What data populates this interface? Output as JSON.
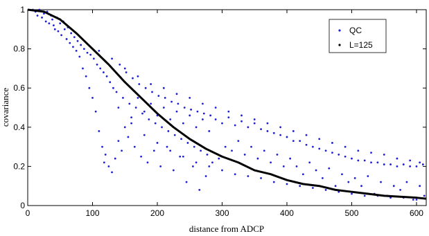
{
  "chart_data": {
    "type": "scatter",
    "xlabel": "distance from ADCP",
    "ylabel": "covariance",
    "xlim": [
      0,
      615
    ],
    "ylim": [
      0,
      1
    ],
    "xticks": [
      0,
      100,
      200,
      300,
      400,
      500,
      600
    ],
    "yticks": [
      0,
      0.2,
      0.4,
      0.6,
      0.8,
      1
    ],
    "grid": false,
    "legend_position": "top-right",
    "series": [
      {
        "name": "QC",
        "kind": "scatter",
        "color": "#1f1fd6",
        "points": [
          [
            8,
            1.0
          ],
          [
            12,
            0.99
          ],
          [
            15,
            0.97
          ],
          [
            18,
            1.0
          ],
          [
            22,
            0.96
          ],
          [
            25,
            0.98
          ],
          [
            28,
            0.94
          ],
          [
            30,
            0.99
          ],
          [
            33,
            0.93
          ],
          [
            36,
            0.97
          ],
          [
            38,
            0.95
          ],
          [
            40,
            0.92
          ],
          [
            42,
            0.9
          ],
          [
            45,
            0.96
          ],
          [
            47,
            0.89
          ],
          [
            50,
            0.93
          ],
          [
            52,
            0.87
          ],
          [
            55,
            0.94
          ],
          [
            57,
            0.9
          ],
          [
            60,
            0.85
          ],
          [
            62,
            0.91
          ],
          [
            65,
            0.83
          ],
          [
            67,
            0.88
          ],
          [
            70,
            0.81
          ],
          [
            72,
            0.86
          ],
          [
            75,
            0.79
          ],
          [
            77,
            0.84
          ],
          [
            80,
            0.76
          ],
          [
            82,
            0.82
          ],
          [
            85,
            0.7
          ],
          [
            87,
            0.8
          ],
          [
            90,
            0.66
          ],
          [
            92,
            0.78
          ],
          [
            95,
            0.6
          ],
          [
            97,
            0.77
          ],
          [
            100,
            0.55
          ],
          [
            102,
            0.75
          ],
          [
            105,
            0.48
          ],
          [
            107,
            0.72
          ],
          [
            110,
            0.38
          ],
          [
            112,
            0.7
          ],
          [
            115,
            0.3
          ],
          [
            117,
            0.68
          ],
          [
            118,
            0.22
          ],
          [
            120,
            0.26
          ],
          [
            122,
            0.66
          ],
          [
            125,
            0.2
          ],
          [
            127,
            0.63
          ],
          [
            130,
            0.17
          ],
          [
            132,
            0.6
          ],
          [
            135,
            0.24
          ],
          [
            137,
            0.58
          ],
          [
            140,
            0.33
          ],
          [
            142,
            0.72
          ],
          [
            145,
            0.28
          ],
          [
            147,
            0.55
          ],
          [
            150,
            0.4
          ],
          [
            152,
            0.68
          ],
          [
            155,
            0.35
          ],
          [
            157,
            0.52
          ],
          [
            160,
            0.45
          ],
          [
            162,
            0.65
          ],
          [
            165,
            0.3
          ],
          [
            167,
            0.5
          ],
          [
            170,
            0.55
          ],
          [
            172,
            0.62
          ],
          [
            175,
            0.25
          ],
          [
            177,
            0.47
          ],
          [
            180,
            0.48
          ],
          [
            182,
            0.6
          ],
          [
            185,
            0.22
          ],
          [
            187,
            0.44
          ],
          [
            190,
            0.52
          ],
          [
            192,
            0.58
          ],
          [
            195,
            0.28
          ],
          [
            197,
            0.42
          ],
          [
            200,
            0.46
          ],
          [
            202,
            0.56
          ],
          [
            205,
            0.2
          ],
          [
            207,
            0.4
          ],
          [
            210,
            0.5
          ],
          [
            212,
            0.55
          ],
          [
            215,
            0.3
          ],
          [
            217,
            0.38
          ],
          [
            220,
            0.44
          ],
          [
            222,
            0.53
          ],
          [
            225,
            0.18
          ],
          [
            227,
            0.36
          ],
          [
            230,
            0.48
          ],
          [
            232,
            0.52
          ],
          [
            235,
            0.25
          ],
          [
            237,
            0.34
          ],
          [
            240,
            0.42
          ],
          [
            242,
            0.5
          ],
          [
            245,
            0.12
          ],
          [
            247,
            0.32
          ],
          [
            250,
            0.46
          ],
          [
            252,
            0.49
          ],
          [
            255,
            0.2
          ],
          [
            257,
            0.3
          ],
          [
            260,
            0.4
          ],
          [
            262,
            0.48
          ],
          [
            265,
            0.08
          ],
          [
            267,
            0.28
          ],
          [
            270,
            0.44
          ],
          [
            272,
            0.47
          ],
          [
            275,
            0.15
          ],
          [
            277,
            0.26
          ],
          [
            280,
            0.38
          ],
          [
            282,
            0.46
          ],
          [
            285,
            0.22
          ],
          [
            290,
            0.44
          ],
          [
            295,
            0.24
          ],
          [
            300,
            0.42
          ],
          [
            305,
            0.3
          ],
          [
            310,
            0.45
          ],
          [
            315,
            0.28
          ],
          [
            320,
            0.41
          ],
          [
            325,
            0.33
          ],
          [
            330,
            0.43
          ],
          [
            335,
            0.26
          ],
          [
            340,
            0.4
          ],
          [
            345,
            0.3
          ],
          [
            350,
            0.42
          ],
          [
            355,
            0.24
          ],
          [
            360,
            0.39
          ],
          [
            365,
            0.28
          ],
          [
            370,
            0.38
          ],
          [
            375,
            0.22
          ],
          [
            380,
            0.37
          ],
          [
            385,
            0.26
          ],
          [
            390,
            0.36
          ],
          [
            395,
            0.2
          ],
          [
            400,
            0.35
          ],
          [
            405,
            0.24
          ],
          [
            410,
            0.33
          ],
          [
            415,
            0.2
          ],
          [
            420,
            0.33
          ],
          [
            425,
            0.16
          ],
          [
            430,
            0.31
          ],
          [
            435,
            0.22
          ],
          [
            440,
            0.3
          ],
          [
            445,
            0.18
          ],
          [
            450,
            0.29
          ],
          [
            455,
            0.14
          ],
          [
            460,
            0.28
          ],
          [
            465,
            0.19
          ],
          [
            470,
            0.27
          ],
          [
            475,
            0.1
          ],
          [
            480,
            0.26
          ],
          [
            485,
            0.16
          ],
          [
            490,
            0.25
          ],
          [
            495,
            0.12
          ],
          [
            500,
            0.24
          ],
          [
            505,
            0.14
          ],
          [
            510,
            0.23
          ],
          [
            515,
            0.1
          ],
          [
            520,
            0.23
          ],
          [
            525,
            0.15
          ],
          [
            530,
            0.22
          ],
          [
            535,
            0.06
          ],
          [
            540,
            0.22
          ],
          [
            545,
            0.12
          ],
          [
            550,
            0.21
          ],
          [
            555,
            0.05
          ],
          [
            560,
            0.21
          ],
          [
            565,
            0.1
          ],
          [
            570,
            0.2
          ],
          [
            575,
            0.08
          ],
          [
            580,
            0.21
          ],
          [
            585,
            0.12
          ],
          [
            590,
            0.2
          ],
          [
            595,
            0.03
          ],
          [
            600,
            0.2
          ],
          [
            605,
            0.1
          ],
          [
            610,
            0.21
          ],
          [
            612,
            0.05
          ],
          [
            110,
            0.79
          ],
          [
            130,
            0.75
          ],
          [
            150,
            0.7
          ],
          [
            170,
            0.66
          ],
          [
            190,
            0.62
          ],
          [
            210,
            0.6
          ],
          [
            230,
            0.57
          ],
          [
            250,
            0.55
          ],
          [
            270,
            0.52
          ],
          [
            290,
            0.5
          ],
          [
            310,
            0.48
          ],
          [
            330,
            0.46
          ],
          [
            350,
            0.44
          ],
          [
            370,
            0.42
          ],
          [
            390,
            0.4
          ],
          [
            410,
            0.38
          ],
          [
            430,
            0.36
          ],
          [
            450,
            0.34
          ],
          [
            470,
            0.32
          ],
          [
            490,
            0.3
          ],
          [
            510,
            0.28
          ],
          [
            530,
            0.27
          ],
          [
            550,
            0.26
          ],
          [
            570,
            0.24
          ],
          [
            590,
            0.23
          ],
          [
            605,
            0.22
          ],
          [
            140,
            0.5
          ],
          [
            160,
            0.42
          ],
          [
            180,
            0.36
          ],
          [
            200,
            0.32
          ],
          [
            220,
            0.28
          ],
          [
            240,
            0.25
          ],
          [
            260,
            0.22
          ],
          [
            280,
            0.2
          ],
          [
            300,
            0.18
          ],
          [
            320,
            0.16
          ],
          [
            340,
            0.15
          ],
          [
            360,
            0.14
          ],
          [
            380,
            0.12
          ],
          [
            400,
            0.11
          ],
          [
            420,
            0.1
          ],
          [
            440,
            0.09
          ],
          [
            460,
            0.08
          ],
          [
            480,
            0.07
          ],
          [
            500,
            0.06
          ],
          [
            520,
            0.05
          ],
          [
            540,
            0.05
          ],
          [
            560,
            0.04
          ],
          [
            580,
            0.04
          ],
          [
            600,
            0.03
          ]
        ]
      },
      {
        "name": "L=125",
        "kind": "line",
        "color": "#000000",
        "x": [
          0,
          25,
          50,
          75,
          100,
          125,
          150,
          175,
          200,
          225,
          250,
          275,
          300,
          325,
          350,
          375,
          400,
          425,
          450,
          475,
          500,
          525,
          550,
          575,
          600,
          615
        ],
        "y": [
          1.0,
          0.99,
          0.95,
          0.88,
          0.8,
          0.72,
          0.63,
          0.55,
          0.47,
          0.4,
          0.34,
          0.29,
          0.25,
          0.22,
          0.18,
          0.16,
          0.13,
          0.11,
          0.1,
          0.08,
          0.07,
          0.06,
          0.05,
          0.045,
          0.04,
          0.035
        ]
      }
    ]
  }
}
